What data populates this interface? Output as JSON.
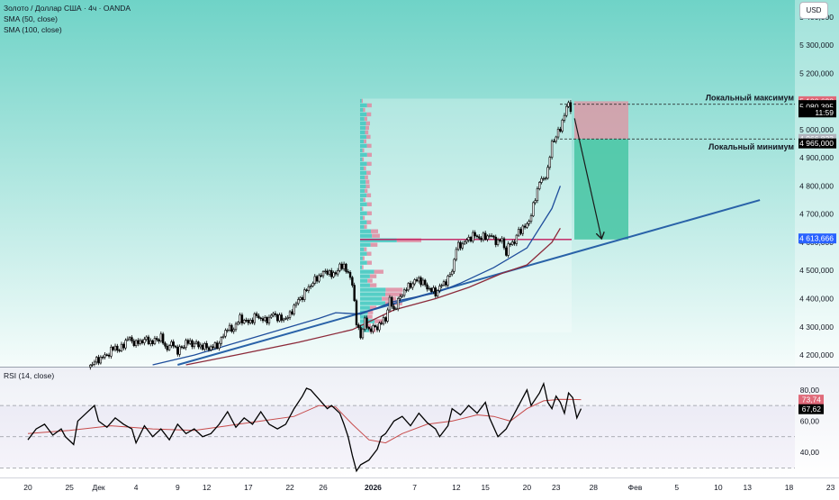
{
  "legend": {
    "title": "Золото / Доллар США · 4ч · OANDA",
    "sma50": "SMA (50, close)",
    "sma100": "SMA (100, close)",
    "rsi": "RSI (14, close)"
  },
  "currency_button": "USD",
  "colors": {
    "background_top": "#6fd3c7",
    "candle": "#000000",
    "sma50": "#1f4e9c",
    "sma100": "#8c2a3a",
    "trendline": "#2962a8",
    "rsi_line": "#000000",
    "rsi_ma": "#c74b4b",
    "stop_zone": "#d99aa7",
    "target_zone": "#4cc6a6",
    "poc_line": "#c2185b",
    "rsi_band": "#d1d4dc"
  },
  "annotations": {
    "local_max": "Локальный максимум",
    "local_min": "Локальный минимум"
  },
  "price_axis": {
    "ticks": [
      "5 400,000",
      "5 300,000",
      "5 200,000",
      "5 000,000",
      "4 900,000",
      "4 800,000",
      "4 700,000",
      "4 600,000",
      "4 500,000",
      "4 400,000",
      "4 300,000",
      "4 200,000"
    ]
  },
  "price_labels": [
    {
      "text": "5 100,628",
      "price": 5100.628,
      "bg": "#e06a7a",
      "fg": "#ffffff"
    },
    {
      "text": "5 087,000",
      "price": 5087,
      "bg": "#000000",
      "fg": "#ffffff"
    },
    {
      "text": "5 080,395",
      "price": 5080.395,
      "bg": "#000000",
      "fg": "#ffffff"
    },
    {
      "text": "11:59",
      "price": 5061,
      "bg": "#000000",
      "fg": "#ffffff"
    },
    {
      "text": "4 966,823",
      "price": 4966.823,
      "bg": "#b2b5be",
      "fg": "#ffffff"
    },
    {
      "text": "4 965,000",
      "price": 4951,
      "bg": "#000000",
      "fg": "#ffffff"
    },
    {
      "text": "4 613,666",
      "price": 4613.666,
      "bg": "#2962ff",
      "fg": "#ffffff"
    }
  ],
  "rsi_axis": {
    "ticks": [
      "80,00",
      "60,00",
      "40,00"
    ]
  },
  "rsi_labels": [
    {
      "text": "73,74",
      "value": 73.74,
      "bg": "#e06a7a",
      "fg": "#ffffff"
    },
    {
      "text": "67,62",
      "value": 67.62,
      "bg": "#000000",
      "fg": "#ffffff"
    }
  ],
  "time_axis": {
    "labels": [
      {
        "text": "20",
        "idx": 0
      },
      {
        "text": "25",
        "idx": 10
      },
      {
        "text": "Дек",
        "idx": 17
      },
      {
        "text": "4",
        "idx": 26
      },
      {
        "text": "9",
        "idx": 36
      },
      {
        "text": "12",
        "idx": 43
      },
      {
        "text": "17",
        "idx": 53
      },
      {
        "text": "22",
        "idx": 63
      },
      {
        "text": "26",
        "idx": 71
      },
      {
        "text": "2026",
        "idx": 83,
        "bold": true
      },
      {
        "text": "7",
        "idx": 93
      },
      {
        "text": "12",
        "idx": 103
      },
      {
        "text": "15",
        "idx": 110
      },
      {
        "text": "20",
        "idx": 120
      },
      {
        "text": "23",
        "idx": 127
      },
      {
        "text": "28",
        "idx": 136
      },
      {
        "text": "Фев",
        "idx": 146
      },
      {
        "text": "5",
        "idx": 156
      },
      {
        "text": "10",
        "idx": 166
      },
      {
        "text": "13",
        "idx": 173
      },
      {
        "text": "18",
        "idx": 183
      },
      {
        "text": "23",
        "idx": 193
      }
    ]
  },
  "chart_data": [
    {
      "type": "candlestick",
      "title": "Золото / Доллар США · 4ч · OANDA",
      "ylim": [
        4165,
        5460
      ],
      "series": [
        {
          "name": "SMA (50, close)",
          "anchors": [
            [
              30,
              4165
            ],
            [
              40,
              4200
            ],
            [
              55,
              4265
            ],
            [
              70,
              4330
            ],
            [
              74,
              4350
            ],
            [
              80,
              4345
            ],
            [
              88,
              4390
            ],
            [
              98,
              4420
            ],
            [
              104,
              4455
            ],
            [
              112,
              4510
            ],
            [
              120,
              4580
            ],
            [
              126,
              4720
            ],
            [
              128,
              4800
            ]
          ]
        },
        {
          "name": "SMA (100, close)",
          "anchors": [
            [
              38,
              4165
            ],
            [
              50,
              4200
            ],
            [
              65,
              4245
            ],
            [
              78,
              4290
            ],
            [
              88,
              4360
            ],
            [
              98,
              4400
            ],
            [
              106,
              4440
            ],
            [
              114,
              4490
            ],
            [
              120,
              4520
            ],
            [
              126,
              4600
            ],
            [
              128,
              4650
            ]
          ]
        }
      ],
      "trendline": {
        "from": [
          36,
          4165
        ],
        "to": [
          176,
          4750
        ]
      },
      "price_points": [
        [
          15,
          4165
        ],
        [
          17,
          4185
        ],
        [
          19,
          4200
        ],
        [
          21,
          4230
        ],
        [
          22,
          4215
        ],
        [
          24,
          4260
        ],
        [
          26,
          4240
        ],
        [
          28,
          4255
        ],
        [
          30,
          4245
        ],
        [
          32,
          4265
        ],
        [
          33,
          4225
        ],
        [
          35,
          4240
        ],
        [
          36,
          4210
        ],
        [
          38,
          4245
        ],
        [
          40,
          4240
        ],
        [
          42,
          4230
        ],
        [
          44,
          4225
        ],
        [
          46,
          4240
        ],
        [
          48,
          4300
        ],
        [
          49,
          4285
        ],
        [
          51,
          4330
        ],
        [
          53,
          4315
        ],
        [
          55,
          4340
        ],
        [
          57,
          4320
        ],
        [
          59,
          4345
        ],
        [
          61,
          4325
        ],
        [
          63,
          4340
        ],
        [
          64,
          4375
        ],
        [
          66,
          4410
        ],
        [
          68,
          4450
        ],
        [
          70,
          4480
        ],
        [
          72,
          4500
        ],
        [
          73,
          4480
        ],
        [
          75,
          4510
        ],
        [
          76,
          4520
        ],
        [
          77,
          4485
        ],
        [
          78,
          4460
        ],
        [
          79,
          4310
        ],
        [
          80,
          4270
        ],
        [
          81,
          4320
        ],
        [
          82,
          4290
        ],
        [
          84,
          4300
        ],
        [
          86,
          4330
        ],
        [
          87,
          4395
        ],
        [
          88,
          4360
        ],
        [
          90,
          4420
        ],
        [
          92,
          4450
        ],
        [
          94,
          4470
        ],
        [
          96,
          4440
        ],
        [
          98,
          4420
        ],
        [
          99,
          4440
        ],
        [
          101,
          4470
        ],
        [
          102,
          4500
        ],
        [
          103,
          4580
        ],
        [
          105,
          4600
        ],
        [
          107,
          4625
        ],
        [
          109,
          4615
        ],
        [
          111,
          4625
        ],
        [
          113,
          4600
        ],
        [
          114,
          4610
        ],
        [
          115,
          4560
        ],
        [
          116,
          4600
        ],
        [
          117,
          4600
        ],
        [
          118,
          4640
        ],
        [
          120,
          4660
        ],
        [
          121,
          4700
        ],
        [
          122,
          4755
        ],
        [
          123,
          4820
        ],
        [
          124,
          4820
        ],
        [
          125,
          4860
        ],
        [
          126,
          4950
        ],
        [
          127,
          4980
        ],
        [
          128,
          5000
        ],
        [
          129,
          5060
        ],
        [
          130,
          5090
        ],
        [
          131,
          5060
        ],
        [
          132,
          5040
        ],
        [
          133,
          5080
        ]
      ],
      "volume_profile_price_range": [
        4280,
        5110
      ],
      "volume_profile_poc": 4610,
      "short_position": {
        "entry": 4966.823,
        "stop": 5100.628,
        "target": 4610
      },
      "arrow": {
        "from": [
          131,
          5040
        ],
        "to": [
          135,
          4610
        ]
      },
      "local_max_level": 5090,
      "local_min_level": 4966.823
    },
    {
      "type": "line",
      "title": "RSI (14, close)",
      "ylim": [
        25,
        92
      ],
      "bands": [
        70,
        50,
        30
      ],
      "points": [
        [
          0,
          48
        ],
        [
          2,
          55
        ],
        [
          4,
          58
        ],
        [
          6,
          51
        ],
        [
          8,
          55
        ],
        [
          9,
          50
        ],
        [
          11,
          45
        ],
        [
          12,
          60
        ],
        [
          14,
          65
        ],
        [
          16,
          70
        ],
        [
          17,
          60
        ],
        [
          19,
          56
        ],
        [
          21,
          62
        ],
        [
          23,
          58
        ],
        [
          25,
          55
        ],
        [
          26,
          46
        ],
        [
          28,
          57
        ],
        [
          30,
          50
        ],
        [
          32,
          55
        ],
        [
          34,
          48
        ],
        [
          36,
          58
        ],
        [
          38,
          52
        ],
        [
          40,
          55
        ],
        [
          42,
          50
        ],
        [
          44,
          52
        ],
        [
          46,
          58
        ],
        [
          48,
          66
        ],
        [
          50,
          56
        ],
        [
          52,
          62
        ],
        [
          54,
          58
        ],
        [
          56,
          66
        ],
        [
          58,
          58
        ],
        [
          60,
          55
        ],
        [
          62,
          58
        ],
        [
          64,
          68
        ],
        [
          66,
          76
        ],
        [
          67,
          81
        ],
        [
          68,
          80
        ],
        [
          70,
          74
        ],
        [
          72,
          68
        ],
        [
          73,
          70
        ],
        [
          75,
          65
        ],
        [
          76,
          58
        ],
        [
          77,
          50
        ],
        [
          78,
          38
        ],
        [
          79,
          28
        ],
        [
          80,
          32
        ],
        [
          82,
          35
        ],
        [
          84,
          42
        ],
        [
          85,
          50
        ],
        [
          86,
          52
        ],
        [
          88,
          60
        ],
        [
          90,
          63
        ],
        [
          92,
          57
        ],
        [
          94,
          65
        ],
        [
          96,
          59
        ],
        [
          98,
          55
        ],
        [
          99,
          50
        ],
        [
          101,
          57
        ],
        [
          102,
          68
        ],
        [
          104,
          64
        ],
        [
          106,
          70
        ],
        [
          108,
          65
        ],
        [
          110,
          72
        ],
        [
          111,
          62
        ],
        [
          113,
          50
        ],
        [
          115,
          55
        ],
        [
          116,
          60
        ],
        [
          118,
          70
        ],
        [
          120,
          80
        ],
        [
          121,
          70
        ],
        [
          123,
          78
        ],
        [
          124,
          84
        ],
        [
          125,
          72
        ],
        [
          126,
          68
        ],
        [
          127,
          76
        ],
        [
          128,
          72
        ],
        [
          129,
          65
        ],
        [
          130,
          78
        ],
        [
          131,
          75
        ],
        [
          132,
          62
        ],
        [
          133,
          68
        ]
      ],
      "ma_points": [
        [
          0,
          52
        ],
        [
          10,
          54
        ],
        [
          20,
          57
        ],
        [
          30,
          55
        ],
        [
          40,
          54
        ],
        [
          48,
          57
        ],
        [
          56,
          60
        ],
        [
          64,
          63
        ],
        [
          70,
          70
        ],
        [
          74,
          69
        ],
        [
          78,
          58
        ],
        [
          82,
          48
        ],
        [
          86,
          46
        ],
        [
          90,
          52
        ],
        [
          96,
          58
        ],
        [
          102,
          60
        ],
        [
          108,
          64
        ],
        [
          112,
          63
        ],
        [
          116,
          60
        ],
        [
          120,
          68
        ],
        [
          124,
          73
        ],
        [
          128,
          74
        ],
        [
          133,
          73.74
        ]
      ]
    }
  ]
}
